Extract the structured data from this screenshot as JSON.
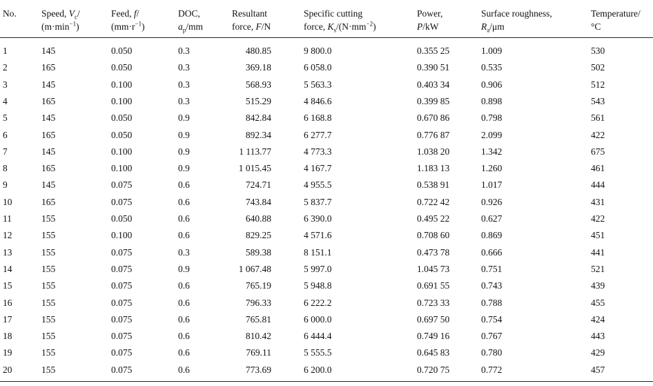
{
  "table": {
    "header": [
      [
        [
          {
            "text": "No."
          }
        ]
      ],
      [
        [
          {
            "text": "Speed, "
          },
          {
            "text": "V",
            "style": "italic"
          },
          {
            "text": "c",
            "style": "sub"
          },
          {
            "text": "/"
          }
        ],
        [
          {
            "text": "(m·min"
          },
          {
            "text": "−1",
            "style": "sup"
          },
          {
            "text": ")"
          }
        ]
      ],
      [
        [
          {
            "text": "Feed, "
          },
          {
            "text": "f",
            "style": "italic"
          },
          {
            "text": "/"
          }
        ],
        [
          {
            "text": "(mm·r"
          },
          {
            "text": "−1",
            "style": "sup"
          },
          {
            "text": ")"
          }
        ]
      ],
      [
        [
          {
            "text": "DOC,"
          }
        ],
        [
          {
            "text": "a",
            "style": "italic"
          },
          {
            "text": "p",
            "style": "sub"
          },
          {
            "text": "/mm"
          }
        ]
      ],
      [
        [
          {
            "text": "Resultant"
          }
        ],
        [
          {
            "text": "force, "
          },
          {
            "text": "F",
            "style": "italic"
          },
          {
            "text": "/N"
          }
        ]
      ],
      [
        [
          {
            "text": "Specific cutting"
          }
        ],
        [
          {
            "text": "force, "
          },
          {
            "text": "K",
            "style": "italic"
          },
          {
            "text": "s",
            "style": "sub"
          },
          {
            "text": "/(N·mm"
          },
          {
            "text": "−2",
            "style": "sup"
          },
          {
            "text": ")"
          }
        ]
      ],
      [
        [
          {
            "text": "Power,"
          }
        ],
        [
          {
            "text": "P",
            "style": "italic"
          },
          {
            "text": "/kW"
          }
        ]
      ],
      [
        [
          {
            "text": "Surface roughness,"
          }
        ],
        [
          {
            "text": "R",
            "style": "italic"
          },
          {
            "text": "a",
            "style": "sub"
          },
          {
            "text": "/μm"
          }
        ]
      ],
      [
        [
          {
            "text": "Temperature/"
          }
        ],
        [
          {
            "text": "°C"
          }
        ]
      ]
    ],
    "rows": [
      [
        "1",
        "145",
        "0.050",
        "0.3",
        "480.85",
        "9 800.0",
        "0.355 25",
        "1.009",
        "530"
      ],
      [
        "2",
        "165",
        "0.050",
        "0.3",
        "369.18",
        "6 058.0",
        "0.390 51",
        "0.535",
        "502"
      ],
      [
        "3",
        "145",
        "0.100",
        "0.3",
        "568.93",
        "5 563.3",
        "0.403 34",
        "0.906",
        "512"
      ],
      [
        "4",
        "165",
        "0.100",
        "0.3",
        "515.29",
        "4 846.6",
        "0.399 85",
        "0.898",
        "543"
      ],
      [
        "5",
        "145",
        "0.050",
        "0.9",
        "842.84",
        "6 168.8",
        "0.670 86",
        "0.798",
        "561"
      ],
      [
        "6",
        "165",
        "0.050",
        "0.9",
        "892.34",
        "6 277.7",
        "0.776 87",
        "2.099",
        "422"
      ],
      [
        "7",
        "145",
        "0.100",
        "0.9",
        "1 113.77",
        "4 773.3",
        "1.038 20",
        "1.342",
        "675"
      ],
      [
        "8",
        "165",
        "0.100",
        "0.9",
        "1 015.45",
        "4 167.7",
        "1.183 13",
        "1.260",
        "461"
      ],
      [
        "9",
        "145",
        "0.075",
        "0.6",
        "724.71",
        "4 955.5",
        "0.538 91",
        "1.017",
        "444"
      ],
      [
        "10",
        "165",
        "0.075",
        "0.6",
        "743.84",
        "5 837.7",
        "0.722 42",
        "0.926",
        "431"
      ],
      [
        "11",
        "155",
        "0.050",
        "0.6",
        "640.88",
        "6 390.0",
        "0.495 22",
        "0.627",
        "422"
      ],
      [
        "12",
        "155",
        "0.100",
        "0.6",
        "829.25",
        "4 571.6",
        "0.708 60",
        "0.869",
        "451"
      ],
      [
        "13",
        "155",
        "0.075",
        "0.3",
        "589.38",
        "8 151.1",
        "0.473 78",
        "0.666",
        "441"
      ],
      [
        "14",
        "155",
        "0.075",
        "0.9",
        "1 067.48",
        "5 997.0",
        "1.045 73",
        "0.751",
        "521"
      ],
      [
        "15",
        "155",
        "0.075",
        "0.6",
        "765.19",
        "5 948.8",
        "0.691 55",
        "0.743",
        "439"
      ],
      [
        "16",
        "155",
        "0.075",
        "0.6",
        "796.33",
        "6 222.2",
        "0.723 33",
        "0.788",
        "455"
      ],
      [
        "17",
        "155",
        "0.075",
        "0.6",
        "765.81",
        "6 000.0",
        "0.697 50",
        "0.754",
        "424"
      ],
      [
        "18",
        "155",
        "0.075",
        "0.6",
        "810.42",
        "6 444.4",
        "0.749 16",
        "0.767",
        "443"
      ],
      [
        "19",
        "155",
        "0.075",
        "0.6",
        "769.11",
        "5 555.5",
        "0.645 83",
        "0.780",
        "429"
      ],
      [
        "20",
        "155",
        "0.075",
        "0.6",
        "773.69",
        "6 200.0",
        "0.720 75",
        "0.772",
        "457"
      ]
    ]
  }
}
